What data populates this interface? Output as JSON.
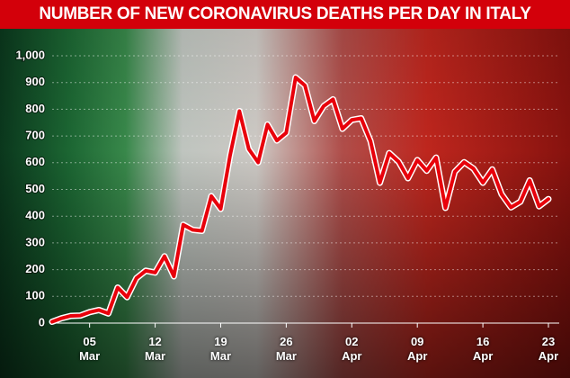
{
  "chart_data": {
    "type": "line",
    "title": "NUMBER OF NEW CORONAVIRUS DEATHS PER DAY IN ITALY",
    "categories": [
      null,
      null,
      null,
      null,
      "05 Mar",
      null,
      null,
      null,
      null,
      null,
      null,
      "12 Mar",
      null,
      null,
      null,
      null,
      null,
      null,
      "19 Mar",
      null,
      null,
      null,
      null,
      null,
      null,
      "26 Mar",
      null,
      null,
      null,
      null,
      null,
      null,
      "02 Apr",
      null,
      null,
      null,
      null,
      null,
      null,
      "09 Apr",
      null,
      null,
      null,
      null,
      null,
      null,
      "16 Apr",
      null,
      null,
      null,
      null,
      null,
      null,
      "23 Apr"
    ],
    "values": [
      5,
      18,
      27,
      28,
      41,
      49,
      36,
      133,
      97,
      168,
      196,
      189,
      250,
      175,
      368,
      349,
      345,
      475,
      427,
      627,
      793,
      651,
      601,
      743,
      683,
      712,
      919,
      889,
      756,
      812,
      837,
      727,
      760,
      766,
      681,
      525,
      636,
      604,
      542,
      610,
      570,
      619,
      431,
      566,
      602,
      578,
      525,
      575,
      482,
      433,
      454,
      534,
      437,
      464
    ],
    "color": "#e8000b",
    "ylim": [
      0,
      1000
    ],
    "yticks": [
      0,
      100,
      200,
      300,
      400,
      500,
      600,
      700,
      800,
      900,
      {
        "value": 1000,
        "label": "1,000"
      }
    ],
    "grid": true
  }
}
